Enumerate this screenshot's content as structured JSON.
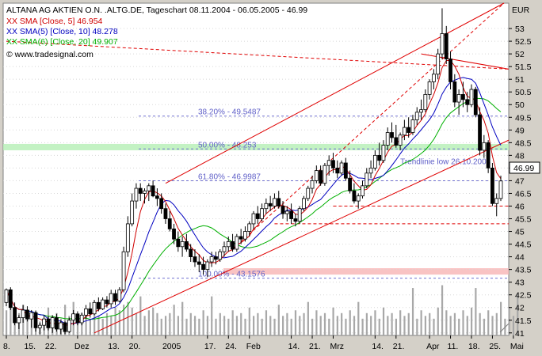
{
  "header": {
    "title": "ALTANA AG AKTIEN O.N. .ALTG.DE, Tageschart 08.11.2004 - 06.05.2005 - 46.99",
    "legend": [
      {
        "text": "XX SMA [Close, 5] 46.954",
        "color": "#d00000"
      },
      {
        "text": "XX SMA(5) [Close, 10] 48.278",
        "color": "#0000c0"
      },
      {
        "text": "XX SMA(6) [Close, 20] 49.907",
        "color": "#00b000"
      }
    ],
    "source": "© www.tradesignal.com"
  },
  "chart_data": {
    "type": "candlestick",
    "currency": "EUR",
    "last_price": "46.99",
    "ylim": [
      40.9,
      54.0
    ],
    "y_ticks": [
      41,
      41.5,
      42,
      42.5,
      43,
      43.5,
      44,
      44.5,
      45,
      45.5,
      46,
      46.5,
      47,
      47.5,
      48,
      48.5,
      49,
      49.5,
      50,
      50.5,
      51,
      51.5,
      52,
      52.5,
      53
    ],
    "x_labels": [
      {
        "label": "8.",
        "i": 0
      },
      {
        "label": "15.",
        "i": 5
      },
      {
        "label": "22.",
        "i": 10
      },
      {
        "label": "Dez",
        "i": 17
      },
      {
        "label": "13.",
        "i": 25
      },
      {
        "label": "20.",
        "i": 30
      },
      {
        "label": "2005",
        "i": 38
      },
      {
        "label": "17.",
        "i": 48
      },
      {
        "label": "24.",
        "i": 53
      },
      {
        "label": "Feb",
        "i": 58
      },
      {
        "label": "14.",
        "i": 68
      },
      {
        "label": "21.",
        "i": 73
      },
      {
        "label": "Mrz",
        "i": 78
      },
      {
        "label": "14.",
        "i": 88
      },
      {
        "label": "21.",
        "i": 93
      },
      {
        "label": "Apr",
        "i": 101
      },
      {
        "label": "11.",
        "i": 106
      },
      {
        "label": "18.",
        "i": 111
      },
      {
        "label": "25.",
        "i": 116
      },
      {
        "label": "Mai",
        "i": 121
      }
    ],
    "fib_levels": [
      {
        "label": "38.20% - 49.5487",
        "value": 49.5487
      },
      {
        "label": "50.00% - 48.253",
        "value": 48.253
      },
      {
        "label": "61.80% - 46.9987",
        "value": 46.9987
      },
      {
        "label": "100.00% - 43.1576",
        "value": 43.1576
      }
    ],
    "annotations": [
      {
        "text": "Trendlinie low 26.10.2004",
        "x_index": 94,
        "value": 47.65
      }
    ],
    "candles": [
      [
        42.2,
        42.75,
        42.05,
        42.7
      ],
      [
        42.7,
        42.8,
        41.9,
        42.0
      ],
      [
        42.0,
        42.2,
        41.3,
        41.4
      ],
      [
        41.4,
        41.7,
        41.15,
        41.6
      ],
      [
        41.6,
        42.1,
        41.4,
        41.9
      ],
      [
        41.9,
        42.05,
        41.45,
        41.55
      ],
      [
        41.55,
        41.9,
        41.2,
        41.8
      ],
      [
        41.8,
        41.85,
        41.05,
        41.2
      ],
      [
        41.2,
        41.4,
        40.95,
        41.3
      ],
      [
        41.3,
        41.7,
        41.1,
        41.55
      ],
      [
        41.55,
        41.65,
        41.1,
        41.2
      ],
      [
        41.2,
        41.7,
        41.0,
        41.6
      ],
      [
        41.6,
        41.75,
        41.05,
        41.15
      ],
      [
        41.15,
        41.5,
        40.95,
        41.4
      ],
      [
        41.4,
        41.45,
        40.95,
        41.05
      ],
      [
        41.05,
        41.6,
        41.0,
        41.5
      ],
      [
        41.5,
        41.9,
        41.3,
        41.75
      ],
      [
        41.75,
        41.85,
        41.3,
        41.4
      ],
      [
        41.4,
        41.8,
        41.3,
        41.7
      ],
      [
        41.7,
        42.1,
        41.55,
        41.95
      ],
      [
        41.95,
        42.2,
        41.6,
        41.75
      ],
      [
        41.75,
        42.3,
        41.7,
        42.2
      ],
      [
        42.2,
        42.4,
        41.85,
        41.95
      ],
      [
        41.95,
        42.4,
        41.9,
        42.3
      ],
      [
        42.3,
        42.45,
        42.0,
        42.15
      ],
      [
        42.15,
        42.7,
        42.0,
        42.55
      ],
      [
        42.55,
        42.7,
        42.1,
        42.25
      ],
      [
        42.25,
        42.8,
        42.2,
        42.7
      ],
      [
        42.7,
        44.4,
        42.6,
        44.2
      ],
      [
        44.2,
        45.6,
        44.0,
        45.3
      ],
      [
        45.3,
        46.5,
        45.2,
        46.2
      ],
      [
        46.2,
        46.9,
        45.9,
        46.7
      ],
      [
        46.7,
        46.9,
        46.2,
        46.5
      ],
      [
        46.5,
        46.7,
        46.1,
        46.6
      ],
      [
        46.6,
        46.9,
        46.2,
        46.8
      ],
      [
        46.8,
        47.0,
        46.35,
        46.4
      ],
      [
        46.4,
        46.7,
        46.0,
        46.3
      ],
      [
        46.3,
        46.5,
        45.7,
        45.9
      ],
      [
        45.9,
        46.1,
        45.3,
        45.5
      ],
      [
        45.5,
        45.8,
        45.0,
        45.1
      ],
      [
        45.1,
        45.3,
        44.5,
        44.7
      ],
      [
        44.7,
        45.0,
        44.2,
        44.4
      ],
      [
        44.4,
        44.8,
        44.0,
        44.6
      ],
      [
        44.6,
        44.9,
        44.2,
        44.3
      ],
      [
        44.3,
        44.5,
        43.8,
        44.0
      ],
      [
        44.0,
        44.3,
        43.6,
        43.8
      ],
      [
        43.8,
        44.1,
        43.4,
        43.7
      ],
      [
        43.7,
        44.0,
        43.3,
        43.5
      ],
      [
        43.5,
        43.9,
        43.2,
        43.8
      ],
      [
        43.8,
        44.2,
        43.6,
        44.0
      ],
      [
        44.0,
        44.2,
        43.7,
        43.9
      ],
      [
        43.9,
        44.3,
        43.8,
        44.2
      ],
      [
        44.2,
        44.6,
        44.0,
        44.4
      ],
      [
        44.4,
        44.8,
        44.2,
        44.6
      ],
      [
        44.6,
        44.9,
        44.2,
        44.3
      ],
      [
        44.3,
        44.9,
        44.2,
        44.8
      ],
      [
        44.8,
        45.1,
        44.5,
        44.7
      ],
      [
        44.7,
        45.2,
        44.6,
        45.0
      ],
      [
        45.0,
        45.4,
        44.8,
        45.3
      ],
      [
        45.3,
        45.8,
        45.1,
        45.7
      ],
      [
        45.7,
        46.0,
        45.3,
        45.5
      ],
      [
        45.5,
        46.1,
        45.4,
        45.9
      ],
      [
        45.9,
        46.3,
        45.7,
        46.1
      ],
      [
        46.1,
        46.4,
        45.8,
        46.0
      ],
      [
        46.0,
        46.5,
        45.9,
        46.3
      ],
      [
        46.3,
        46.6,
        45.9,
        46.0
      ],
      [
        46.0,
        46.2,
        45.5,
        45.7
      ],
      [
        45.7,
        46.0,
        45.4,
        45.8
      ],
      [
        45.8,
        46.1,
        45.3,
        45.5
      ],
      [
        45.5,
        45.7,
        45.2,
        45.4
      ],
      [
        45.4,
        46.0,
        45.3,
        45.9
      ],
      [
        45.9,
        46.4,
        45.8,
        46.3
      ],
      [
        46.3,
        46.8,
        46.2,
        46.7
      ],
      [
        46.7,
        47.2,
        46.5,
        47.0
      ],
      [
        47.0,
        47.6,
        46.9,
        47.4
      ],
      [
        47.4,
        47.6,
        46.8,
        46.9
      ],
      [
        46.9,
        47.7,
        46.8,
        47.6
      ],
      [
        47.6,
        48.0,
        47.2,
        47.8
      ],
      [
        47.8,
        48.1,
        47.3,
        47.5
      ],
      [
        47.5,
        47.8,
        47.1,
        47.3
      ],
      [
        47.3,
        47.8,
        47.2,
        47.7
      ],
      [
        47.7,
        47.9,
        47.0,
        47.1
      ],
      [
        47.1,
        47.4,
        46.5,
        46.6
      ],
      [
        46.6,
        46.9,
        46.1,
        46.2
      ],
      [
        46.2,
        46.5,
        45.9,
        46.4
      ],
      [
        46.4,
        47.0,
        46.3,
        46.8
      ],
      [
        46.8,
        47.5,
        46.7,
        47.3
      ],
      [
        47.3,
        47.8,
        47.1,
        47.5
      ],
      [
        47.5,
        48.2,
        47.4,
        48.0
      ],
      [
        48.0,
        48.5,
        47.6,
        47.8
      ],
      [
        47.8,
        48.6,
        47.7,
        48.4
      ],
      [
        48.4,
        49.1,
        48.2,
        48.9
      ],
      [
        48.9,
        49.3,
        48.5,
        48.7
      ],
      [
        48.7,
        49.2,
        48.3,
        48.4
      ],
      [
        48.4,
        48.9,
        48.2,
        48.8
      ],
      [
        48.8,
        49.4,
        48.6,
        49.1
      ],
      [
        49.1,
        49.5,
        48.7,
        48.9
      ],
      [
        48.9,
        49.6,
        48.8,
        49.4
      ],
      [
        49.4,
        49.9,
        49.2,
        49.7
      ],
      [
        49.7,
        50.2,
        49.4,
        49.8
      ],
      [
        49.8,
        50.6,
        49.7,
        50.4
      ],
      [
        50.4,
        51.0,
        50.2,
        50.9
      ],
      [
        50.9,
        51.4,
        50.6,
        51.2
      ],
      [
        51.2,
        52.2,
        51.0,
        52.0
      ],
      [
        52.0,
        53.8,
        51.8,
        52.8
      ],
      [
        52.8,
        53.1,
        51.6,
        51.8
      ],
      [
        51.8,
        52.1,
        50.6,
        50.9
      ],
      [
        50.9,
        51.2,
        49.9,
        50.1
      ],
      [
        50.1,
        50.6,
        49.6,
        50.4
      ],
      [
        50.4,
        50.9,
        49.9,
        50.2
      ],
      [
        50.2,
        50.5,
        49.7,
        50.0
      ],
      [
        50.0,
        50.8,
        49.9,
        50.6
      ],
      [
        50.6,
        50.7,
        49.5,
        49.6
      ],
      [
        49.6,
        49.9,
        48.0,
        48.2
      ],
      [
        48.2,
        48.8,
        47.9,
        48.5
      ],
      [
        48.5,
        48.6,
        47.3,
        47.5
      ],
      [
        47.5,
        47.7,
        46.0,
        46.1
      ],
      [
        46.1,
        46.5,
        45.6,
        46.3
      ],
      [
        46.3,
        47.2,
        46.2,
        46.99
      ]
    ],
    "volume": [
      0.45,
      0.7,
      0.3,
      0.4,
      0.55,
      0.35,
      0.3,
      0.45,
      0.25,
      0.3,
      0.5,
      0.35,
      0.4,
      0.3,
      0.55,
      0.35,
      0.6,
      0.3,
      0.4,
      0.35,
      0.3,
      0.45,
      0.35,
      0.3,
      0.4,
      0.35,
      0.5,
      0.45,
      0.55,
      0.6,
      0.5,
      0.4,
      0.7,
      0.35,
      0.45,
      0.5,
      0.4,
      0.3,
      0.35,
      0.4,
      0.55,
      0.35,
      0.6,
      0.3,
      0.4,
      0.35,
      0.3,
      0.45,
      0.35,
      0.7,
      0.3,
      0.4,
      0.35,
      0.3,
      0.45,
      0.35,
      0.4,
      0.3,
      0.5,
      0.35,
      0.4,
      0.3,
      0.45,
      0.35,
      0.3,
      0.55,
      0.35,
      0.4,
      0.3,
      0.45,
      0.35,
      0.4,
      0.6,
      0.3,
      0.45,
      0.35,
      0.4,
      0.3,
      0.5,
      0.35,
      0.4,
      0.3,
      0.45,
      0.35,
      0.6,
      0.3,
      0.4,
      0.35,
      0.45,
      0.3,
      0.5,
      0.35,
      0.4,
      0.3,
      0.45,
      0.35,
      0.4,
      0.85,
      0.3,
      0.45,
      0.35,
      0.4,
      0.3,
      0.5,
      0.9,
      0.45,
      0.35,
      0.4,
      0.3,
      0.45,
      0.35,
      0.5,
      0.85,
      0.4,
      0.3,
      0.45,
      0.35,
      0.4,
      0.6,
      0.3,
      0.5,
      0.35,
      0.75
    ]
  }
}
